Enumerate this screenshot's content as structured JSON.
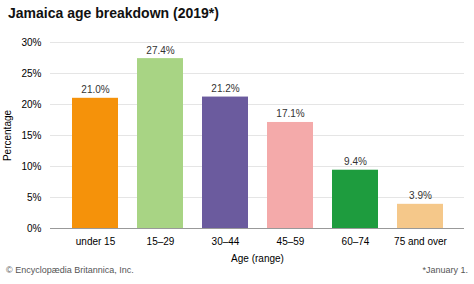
{
  "chart_data": {
    "type": "bar",
    "title": "Jamaica age breakdown (2019*)",
    "xlabel": "Age (range)",
    "ylabel": "Percentage",
    "categories": [
      "under 15",
      "15–29",
      "30–44",
      "45–59",
      "60–74",
      "75 and over"
    ],
    "values": [
      21.0,
      27.4,
      21.2,
      17.1,
      9.4,
      3.9
    ],
    "value_labels": [
      "21.0%",
      "27.4%",
      "21.2%",
      "17.1%",
      "9.4%",
      "3.9%"
    ],
    "colors": [
      "#f5920a",
      "#a8d484",
      "#6b5b9e",
      "#f4aaaa",
      "#1e9c3e",
      "#f5c88a"
    ],
    "ylim": [
      0,
      30
    ],
    "yticks": [
      {
        "value": 0,
        "label": "0%"
      },
      {
        "value": 5,
        "label": "5%"
      },
      {
        "value": 10,
        "label": "10%"
      },
      {
        "value": 15,
        "label": "15%"
      },
      {
        "value": 20,
        "label": "20%"
      },
      {
        "value": 25,
        "label": "25%"
      },
      {
        "value": 30,
        "label": "30%"
      }
    ],
    "grid": true,
    "data_labels": true,
    "annotations": [
      "© Encyclopædia Britannica, Inc.",
      "*January 1."
    ]
  }
}
